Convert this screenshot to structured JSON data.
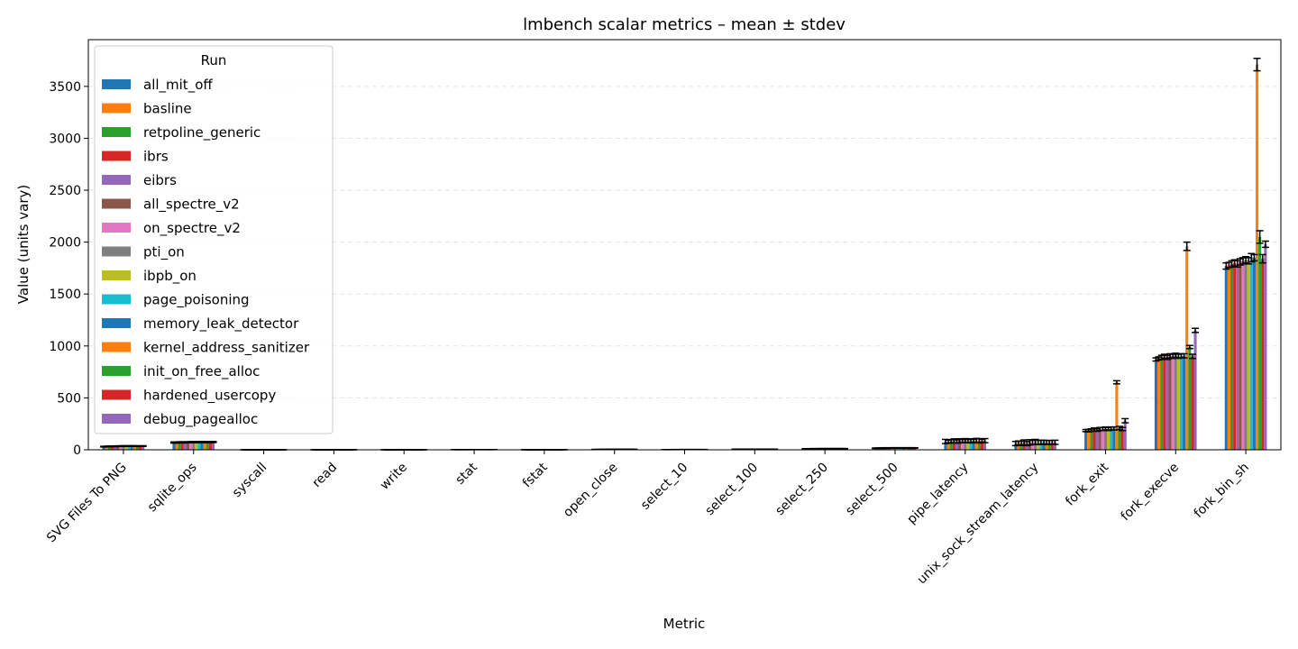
{
  "chart_data": {
    "type": "bar",
    "title": "lmbench scalar metrics – mean ± stdev",
    "xlabel": "Metric",
    "ylabel": "Value (units vary)",
    "ylim": [
      0,
      3950
    ],
    "yticks": [
      0,
      500,
      1000,
      1500,
      2000,
      2500,
      3000,
      3500
    ],
    "grid": "y-dashed",
    "legend": {
      "title": "Run",
      "placement": "top-left"
    },
    "error_bars": true,
    "categories": [
      "SVG Files To PNG",
      "sqlite_ops",
      "syscall",
      "read",
      "write",
      "stat",
      "fstat",
      "open_close",
      "select_10",
      "select_100",
      "select_250",
      "select_500",
      "pipe_latency",
      "unix_sock_stream_latency",
      "fork_exit",
      "fork_execve",
      "fork_bin_sh"
    ],
    "series": [
      {
        "name": "all_mit_off",
        "color": "#1f77b4",
        "values": [
          30,
          70,
          0.3,
          0.4,
          0.4,
          1.5,
          0.6,
          3,
          2,
          5,
          10,
          15,
          80,
          60,
          185,
          870,
          1770
        ],
        "errors": [
          3,
          5,
          0.05,
          0.05,
          0.05,
          0.2,
          0.1,
          0.5,
          0.3,
          0.5,
          1,
          2,
          20,
          20,
          10,
          15,
          30
        ]
      },
      {
        "name": "basline",
        "color": "#ff7f0e",
        "values": [
          32,
          70,
          0.3,
          0.4,
          0.4,
          1.6,
          0.6,
          3,
          2,
          5,
          10,
          16,
          78,
          65,
          185,
          880,
          1780
        ],
        "errors": [
          3,
          5,
          0.05,
          0.05,
          0.05,
          0.2,
          0.1,
          0.5,
          0.3,
          0.5,
          1,
          2,
          15,
          20,
          12,
          15,
          25
        ]
      },
      {
        "name": "retpoline_generic",
        "color": "#2ca02c",
        "values": [
          33,
          72,
          0.3,
          0.4,
          0.4,
          1.6,
          0.6,
          3,
          2,
          5,
          10,
          16,
          82,
          62,
          190,
          890,
          1790
        ],
        "errors": [
          3,
          5,
          0.05,
          0.05,
          0.05,
          0.2,
          0.1,
          0.5,
          0.3,
          0.5,
          1,
          2,
          15,
          20,
          12,
          20,
          30
        ]
      },
      {
        "name": "ibrs",
        "color": "#d62728",
        "values": [
          34,
          72,
          0.4,
          0.5,
          0.5,
          1.8,
          0.7,
          4,
          2.5,
          6,
          11,
          18,
          85,
          70,
          195,
          900,
          1800
        ],
        "errors": [
          3,
          5,
          0.05,
          0.05,
          0.05,
          0.2,
          0.1,
          0.5,
          0.3,
          0.5,
          1,
          2,
          20,
          25,
          15,
          20,
          30
        ]
      },
      {
        "name": "eibrs",
        "color": "#9467bd",
        "values": [
          33,
          71,
          0.3,
          0.4,
          0.4,
          1.6,
          0.6,
          3,
          2,
          5,
          10,
          16,
          80,
          60,
          190,
          890,
          1790
        ],
        "errors": [
          3,
          5,
          0.05,
          0.05,
          0.05,
          0.2,
          0.1,
          0.5,
          0.3,
          0.5,
          1,
          2,
          15,
          20,
          12,
          20,
          30
        ]
      },
      {
        "name": "all_spectre_v2",
        "color": "#8c564b",
        "values": [
          35,
          73,
          0.4,
          0.5,
          0.5,
          1.8,
          0.7,
          4,
          2.5,
          6,
          11,
          18,
          86,
          72,
          200,
          905,
          1810
        ],
        "errors": [
          3,
          5,
          0.05,
          0.05,
          0.05,
          0.2,
          0.1,
          0.5,
          0.3,
          0.5,
          1,
          2,
          20,
          25,
          15,
          20,
          30
        ]
      },
      {
        "name": "on_spectre_v2",
        "color": "#e377c2",
        "values": [
          35,
          73,
          0.4,
          0.5,
          0.5,
          1.8,
          0.7,
          4,
          2.5,
          6,
          11,
          18,
          84,
          70,
          200,
          900,
          1820
        ],
        "errors": [
          3,
          5,
          0.05,
          0.05,
          0.05,
          0.2,
          0.1,
          0.5,
          0.3,
          0.5,
          1,
          2,
          15,
          20,
          15,
          20,
          30
        ]
      },
      {
        "name": "pti_on",
        "color": "#7f7f7f",
        "values": [
          36,
          74,
          0.4,
          0.5,
          0.5,
          1.9,
          0.8,
          4,
          2.5,
          6,
          11,
          18,
          88,
          75,
          205,
          910,
          1830
        ],
        "errors": [
          3,
          5,
          0.05,
          0.05,
          0.05,
          0.2,
          0.1,
          0.5,
          0.3,
          0.5,
          1,
          2,
          20,
          25,
          15,
          20,
          30
        ]
      },
      {
        "name": "ibpb_on",
        "color": "#bcbd22",
        "values": [
          35,
          73,
          0.4,
          0.5,
          0.5,
          1.8,
          0.7,
          4,
          2.5,
          6,
          11,
          18,
          84,
          70,
          200,
          900,
          1820
        ],
        "errors": [
          3,
          5,
          0.05,
          0.05,
          0.05,
          0.2,
          0.1,
          0.5,
          0.3,
          0.5,
          1,
          2,
          15,
          20,
          15,
          20,
          30
        ]
      },
      {
        "name": "page_poisoning",
        "color": "#17becf",
        "values": [
          36,
          74,
          0.4,
          0.5,
          0.5,
          1.9,
          0.8,
          4,
          2.5,
          6,
          11,
          18,
          86,
          72,
          205,
          905,
          1850
        ],
        "errors": [
          3,
          5,
          0.05,
          0.05,
          0.05,
          0.2,
          0.1,
          0.5,
          0.3,
          0.5,
          1,
          2,
          20,
          20,
          15,
          20,
          40
        ]
      },
      {
        "name": "memory_leak_detector",
        "color": "#1f77b4",
        "values": [
          36,
          74,
          0.4,
          0.5,
          0.5,
          1.9,
          0.8,
          4,
          2.5,
          6,
          11,
          18,
          86,
          72,
          205,
          905,
          1850
        ],
        "errors": [
          3,
          5,
          0.05,
          0.05,
          0.05,
          0.2,
          0.1,
          0.5,
          0.3,
          0.5,
          1,
          2,
          15,
          20,
          15,
          20,
          30
        ]
      },
      {
        "name": "kernel_address_sanitizer",
        "color": "#ff7f0e",
        "values": [
          36,
          74,
          0.4,
          0.5,
          0.5,
          1.9,
          0.8,
          4,
          2.5,
          6,
          11,
          18,
          90,
          70,
          650,
          1960,
          3710
        ],
        "errors": [
          3,
          5,
          0.05,
          0.05,
          0.05,
          0.2,
          0.1,
          0.5,
          0.3,
          0.5,
          1,
          2,
          20,
          20,
          15,
          40,
          60
        ]
      },
      {
        "name": "init_on_free_alloc",
        "color": "#2ca02c",
        "values": [
          35,
          73,
          0.4,
          0.5,
          0.5,
          1.8,
          0.7,
          4,
          2.5,
          6,
          11,
          18,
          86,
          70,
          210,
          990,
          2050
        ],
        "errors": [
          3,
          5,
          0.05,
          0.05,
          0.05,
          0.2,
          0.1,
          0.5,
          0.3,
          0.5,
          1,
          2,
          20,
          20,
          15,
          15,
          60
        ]
      },
      {
        "name": "hardened_usercopy",
        "color": "#d62728",
        "values": [
          35,
          73,
          0.4,
          0.5,
          0.5,
          1.8,
          0.7,
          4,
          2.5,
          6,
          11,
          18,
          86,
          70,
          200,
          900,
          1840
        ],
        "errors": [
          3,
          5,
          0.05,
          0.05,
          0.05,
          0.2,
          0.1,
          0.5,
          0.3,
          0.5,
          1,
          2,
          15,
          20,
          15,
          20,
          40
        ]
      },
      {
        "name": "debug_pagealloc",
        "color": "#9467bd",
        "values": [
          36,
          75,
          0.4,
          0.5,
          0.5,
          1.9,
          0.8,
          4,
          2.5,
          6,
          11,
          18,
          88,
          72,
          280,
          1150,
          1980
        ],
        "errors": [
          3,
          5,
          0.05,
          0.05,
          0.05,
          0.2,
          0.1,
          0.5,
          0.3,
          0.5,
          1,
          2,
          20,
          20,
          20,
          20,
          30
        ]
      }
    ]
  }
}
